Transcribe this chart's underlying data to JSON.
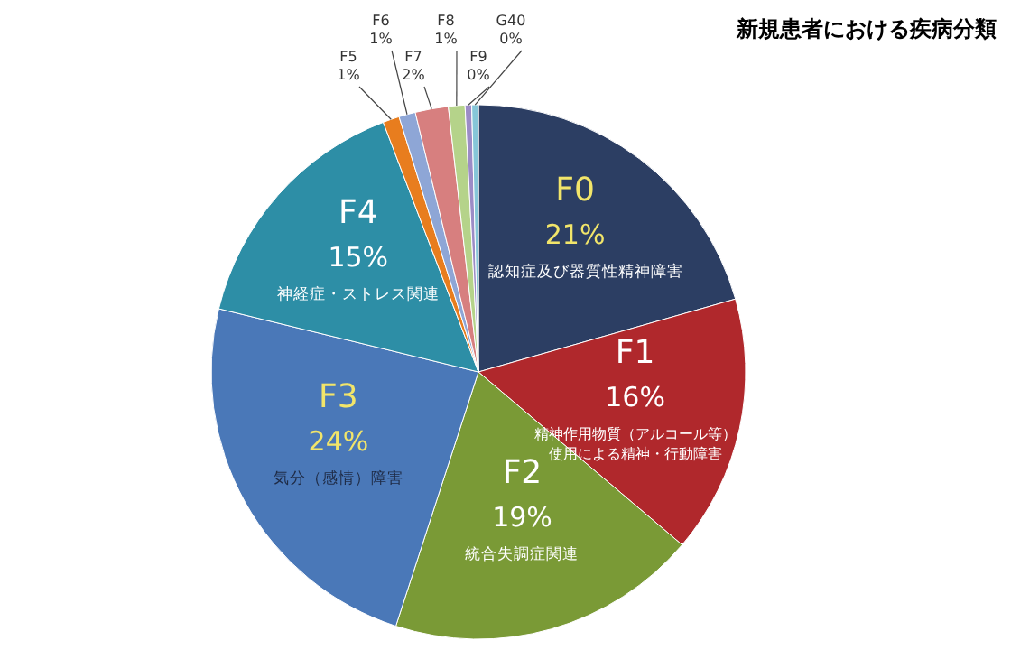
{
  "chart_data": {
    "type": "pie",
    "title": "新規患者における疾病分類",
    "categories": [
      "F0",
      "F1",
      "F2",
      "F3",
      "F4",
      "F5",
      "F6",
      "F7",
      "F8",
      "F9",
      "G40"
    ],
    "values": [
      20.6,
      15.6,
      18.8,
      23.8,
      15.4,
      1,
      1,
      2,
      1,
      0.4,
      0.4
    ],
    "value_labels": [
      "21%",
      "16%",
      "19%",
      "24%",
      "15%",
      "1%",
      "1%",
      "2%",
      "1%",
      "0%",
      "0%"
    ],
    "colors": [
      "#2c3e63",
      "#b0282c",
      "#7a9a36",
      "#4a78b8",
      "#2d8ea6",
      "#e87d1e",
      "#8ea6d6",
      "#d77f7f",
      "#b5d38a",
      "#9c8cc6",
      "#86c6d8"
    ],
    "annotations": [
      {
        "text": "認知症及び器質性精神障害",
        "x": "F0"
      },
      {
        "text": "精神作用物質（アルコール等）",
        "x": "F1"
      },
      {
        "text": "使用による精神・行動障害",
        "x": "F1"
      },
      {
        "text": "統合失調症関連",
        "x": "F2"
      },
      {
        "text": "気分（感情）障害",
        "x": "F3"
      },
      {
        "text": "神経症・ストレス関連",
        "x": "F4"
      }
    ]
  }
}
